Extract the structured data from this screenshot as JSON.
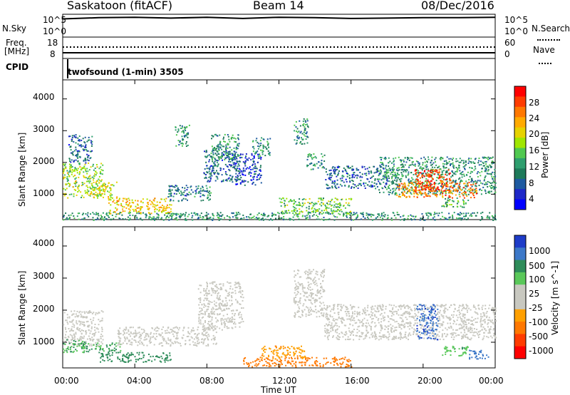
{
  "header": {
    "title": "Saskatoon (fitACF)",
    "beam": "Beam 14",
    "date": "08/Dec/2016"
  },
  "noise_panel": {
    "left_label": "N.Sky",
    "right_label": "N.Search",
    "left_ticks": [
      "10^5",
      "10^0"
    ],
    "right_ticks": [
      "10^5",
      "10^0"
    ]
  },
  "freq_panel": {
    "left_label_1": "Freq.",
    "left_label_2": "[MHz]",
    "right_label": "Nave",
    "left_ticks": [
      "18",
      "8"
    ],
    "right_ticks": [
      "60",
      "0"
    ]
  },
  "cpid": {
    "label": "CPID",
    "text": "twofsound (1-min) 3505"
  },
  "time_axis": {
    "title": "Time UT",
    "ticks": [
      "00:00",
      "04:00",
      "08:00",
      "12:00",
      "16:00",
      "20:00",
      "00:00"
    ]
  },
  "range_axis": {
    "title": "Slant Range [km]",
    "ticks": [
      "1000",
      "2000",
      "3000",
      "4000"
    ]
  },
  "power_bar": {
    "title": "Power [dB]",
    "ticks": [
      "28",
      "24",
      "20",
      "16",
      "12",
      "8",
      "4"
    ],
    "colors": [
      "#ff0000",
      "#ff3c00",
      "#ff7800",
      "#ffaa00",
      "#e6d200",
      "#a0e600",
      "#50c850",
      "#2e9e6e",
      "#1e7a5a",
      "#1e5aa0",
      "#1e28c8",
      "#0000ff"
    ]
  },
  "velocity_bar": {
    "title": "Velocity [m s^-1]",
    "ticks": [
      "1000",
      "500",
      "100",
      "25",
      "-25",
      "-100",
      "-500",
      "-1000"
    ],
    "colors": [
      "#1e3cc8",
      "#3c78c8",
      "#2e8c5a",
      "#5ac85a",
      "#c8c8c0",
      "#c8c8c0",
      "#ffa000",
      "#ff7800",
      "#ff3c00",
      "#ff0000"
    ]
  },
  "chart_data": [
    {
      "type": "line",
      "title": "N.Sky / N.Search",
      "x": [
        "00:00",
        "02:00",
        "04:00",
        "06:00",
        "08:00",
        "10:00",
        "12:00",
        "14:00",
        "16:00",
        "18:00",
        "20:00",
        "22:00",
        "00:00"
      ],
      "series": [
        {
          "name": "N.Sky",
          "values": [
            4.2,
            4.5,
            4.6,
            4.4,
            4.6,
            4.3,
            4.6,
            4.5,
            4.3,
            4.4,
            4.5,
            4.5,
            4.6
          ]
        }
      ],
      "ylim": [
        0,
        5
      ]
    },
    {
      "type": "line",
      "title": "Freq. / Nave",
      "x": [
        "00:00",
        "04:00",
        "08:00",
        "12:00",
        "16:00",
        "20:00",
        "00:00"
      ],
      "series": [
        {
          "name": "Freq. [MHz]",
          "values": [
            10,
            10,
            10,
            10,
            10,
            10,
            10
          ]
        },
        {
          "name": "Nave",
          "values": [
            28,
            28,
            28,
            28,
            28,
            28,
            28
          ]
        }
      ]
    },
    {
      "type": "heatmap",
      "title": "Power [dB]",
      "xlabel": "Time UT",
      "ylabel": "Slant Range [km]",
      "xlim": [
        0,
        24
      ],
      "ylim": [
        200,
        4600
      ],
      "regions": [
        {
          "t0": 0.0,
          "t1": 2.2,
          "r0": 900,
          "r1": 2000,
          "level": 16
        },
        {
          "t0": 0.3,
          "t1": 1.6,
          "r0": 2000,
          "r1": 2900,
          "level": 6
        },
        {
          "t0": 1.5,
          "t1": 3.0,
          "r0": 900,
          "r1": 1400,
          "level": 18
        },
        {
          "t0": 2.5,
          "t1": 6.0,
          "r0": 400,
          "r1": 900,
          "level": 20
        },
        {
          "t0": 0.0,
          "t1": 24.0,
          "r0": 200,
          "r1": 450,
          "level": 10
        },
        {
          "t0": 5.8,
          "t1": 8.2,
          "r0": 800,
          "r1": 1300,
          "level": 8
        },
        {
          "t0": 6.2,
          "t1": 7.0,
          "r0": 2500,
          "r1": 3200,
          "level": 10
        },
        {
          "t0": 7.8,
          "t1": 9.8,
          "r0": 1400,
          "r1": 2400,
          "level": 6
        },
        {
          "t0": 8.2,
          "t1": 9.8,
          "r0": 2100,
          "r1": 2900,
          "level": 10
        },
        {
          "t0": 9.5,
          "t1": 11.0,
          "r0": 1300,
          "r1": 2300,
          "level": 4
        },
        {
          "t0": 10.5,
          "t1": 11.5,
          "r0": 2200,
          "r1": 2800,
          "level": 10
        },
        {
          "t0": 12.0,
          "t1": 16.0,
          "r0": 400,
          "r1": 900,
          "level": 14
        },
        {
          "t0": 12.8,
          "t1": 13.6,
          "r0": 2600,
          "r1": 3400,
          "level": 10
        },
        {
          "t0": 13.5,
          "t1": 14.5,
          "r0": 1800,
          "r1": 2300,
          "level": 10
        },
        {
          "t0": 14.5,
          "t1": 18.0,
          "r0": 1200,
          "r1": 1900,
          "level": 6
        },
        {
          "t0": 17.5,
          "t1": 24.0,
          "r0": 1000,
          "r1": 2200,
          "level": 10
        },
        {
          "t0": 18.5,
          "t1": 23.0,
          "r0": 900,
          "r1": 1400,
          "level": 24
        },
        {
          "t0": 19.5,
          "t1": 21.5,
          "r0": 1100,
          "r1": 1800,
          "level": 28
        },
        {
          "t0": 21.0,
          "t1": 22.5,
          "r0": 600,
          "r1": 900,
          "level": 12
        }
      ]
    },
    {
      "type": "heatmap",
      "title": "Velocity [m s^-1]",
      "xlabel": "Time UT",
      "ylabel": "Slant Range [km]",
      "xlim": [
        0,
        24
      ],
      "ylim": [
        200,
        4600
      ],
      "regions": [
        {
          "t0": 0.0,
          "t1": 2.2,
          "r0": 900,
          "r1": 2000,
          "level": 0
        },
        {
          "t0": 0.0,
          "t1": 1.2,
          "r0": 700,
          "r1": 1100,
          "level": 100
        },
        {
          "t0": 1.0,
          "t1": 3.2,
          "r0": 700,
          "r1": 1000,
          "level": 100
        },
        {
          "t0": 2.0,
          "t1": 6.0,
          "r0": 400,
          "r1": 700,
          "level": 150
        },
        {
          "t0": 3.0,
          "t1": 8.5,
          "r0": 900,
          "r1": 1500,
          "level": 0
        },
        {
          "t0": 7.5,
          "t1": 10.0,
          "r0": 1400,
          "r1": 2900,
          "level": 0
        },
        {
          "t0": 10.0,
          "t1": 16.0,
          "r0": 250,
          "r1": 550,
          "level": -150
        },
        {
          "t0": 11.0,
          "t1": 13.5,
          "r0": 500,
          "r1": 900,
          "level": -80
        },
        {
          "t0": 12.8,
          "t1": 14.5,
          "r0": 1800,
          "r1": 3300,
          "level": 0
        },
        {
          "t0": 14.5,
          "t1": 24.0,
          "r0": 1100,
          "r1": 2200,
          "level": 0
        },
        {
          "t0": 19.6,
          "t1": 20.8,
          "r0": 1100,
          "r1": 2200,
          "level": 700
        },
        {
          "t0": 21.0,
          "t1": 22.5,
          "r0": 600,
          "r1": 900,
          "level": 80
        },
        {
          "t0": 22.5,
          "t1": 23.6,
          "r0": 500,
          "r1": 800,
          "level": 600
        }
      ]
    }
  ]
}
